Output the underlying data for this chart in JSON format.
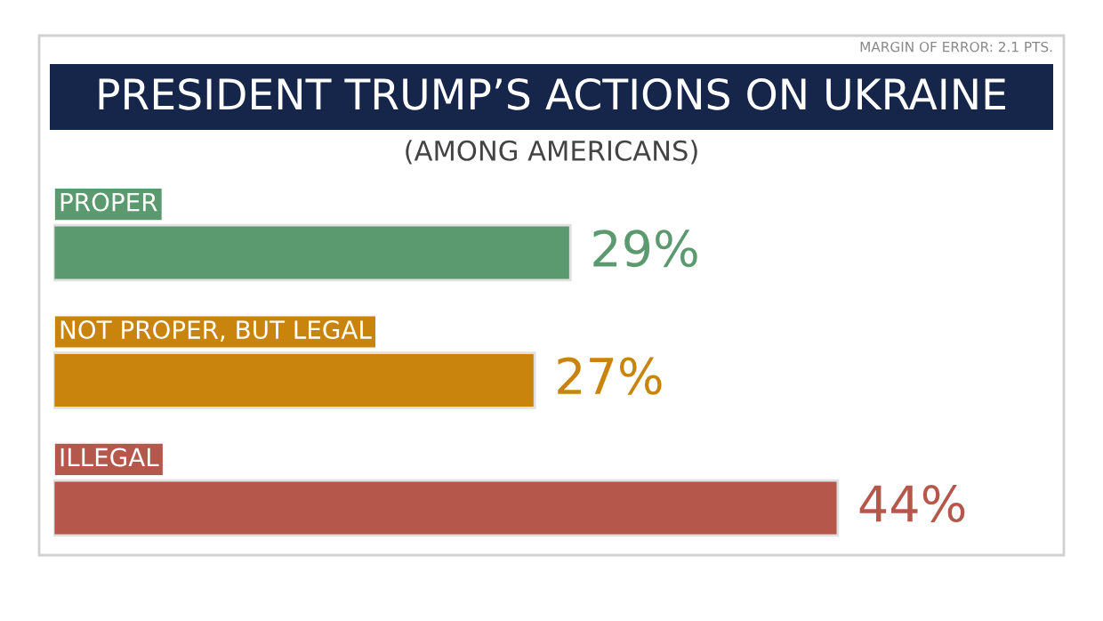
{
  "chart_data": {
    "type": "bar",
    "orientation": "horizontal",
    "title": "PRESIDENT TRUMP’S ACTIONS ON UKRAINE",
    "subtitle": "(AMONG AMERICANS)",
    "annotations": [
      "MARGIN OF ERROR: 2.1 PTS."
    ],
    "categories": [
      "PROPER",
      "NOT PROPER, BUT LEGAL",
      "ILLEGAL"
    ],
    "values": [
      29,
      27,
      44
    ],
    "colors": [
      "#5b9a6f",
      "#c8840c",
      "#b5574b"
    ],
    "value_labels": [
      "29%",
      "27%",
      "44%"
    ]
  }
}
